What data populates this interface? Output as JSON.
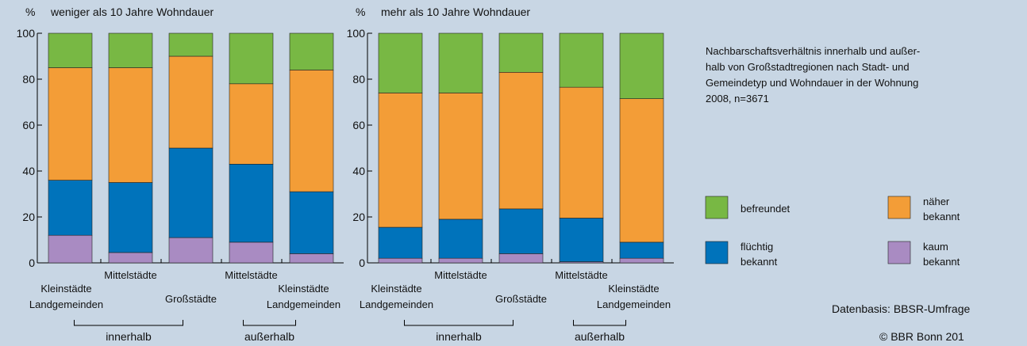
{
  "chart_data": [
    {
      "type": "bar",
      "stacked": true,
      "title": "weniger als 10 Jahre Wohndauer",
      "y_unit": "%",
      "categories": [
        "Kleinstädte\nLandgemeinden",
        "Mittelstädte",
        "Großstädte",
        "Mittelstädte",
        "Kleinstädte\nLandgemeinden"
      ],
      "groups": [
        "innerhalb",
        "außerhalb"
      ],
      "series": [
        {
          "name": "kaum bekannt",
          "color": "#a98bc2",
          "values": [
            12,
            4.5,
            11,
            9,
            4
          ]
        },
        {
          "name": "flüchtig bekannt",
          "color": "#0073bb",
          "values": [
            24,
            30.5,
            39,
            34,
            27
          ]
        },
        {
          "name": "näher bekannt",
          "color": "#f39d37",
          "values": [
            49,
            50,
            40,
            35,
            53
          ]
        },
        {
          "name": "befreundet",
          "color": "#78b844",
          "values": [
            15,
            15,
            10,
            22,
            16
          ]
        }
      ],
      "ylim": [
        0,
        100
      ],
      "yticks": [
        0,
        20,
        40,
        60,
        80,
        100
      ]
    },
    {
      "type": "bar",
      "stacked": true,
      "title": "mehr als 10 Jahre Wohndauer",
      "y_unit": "%",
      "categories": [
        "Kleinstädte\nLandgemeinden",
        "Mittelstädte",
        "Großstädte",
        "Mittelstädte",
        "Kleinstädte\nLandgemeinden"
      ],
      "groups": [
        "innerhalb",
        "außerhalb"
      ],
      "series": [
        {
          "name": "kaum bekannt",
          "color": "#a98bc2",
          "values": [
            2,
            2,
            4,
            0.5,
            2
          ]
        },
        {
          "name": "flüchtig bekannt",
          "color": "#0073bb",
          "values": [
            13.5,
            17,
            19.5,
            19,
            7
          ]
        },
        {
          "name": "näher bekannt",
          "color": "#f39d37",
          "values": [
            58.5,
            55,
            59.5,
            57,
            62.5
          ]
        },
        {
          "name": "befreundet",
          "color": "#78b844",
          "values": [
            26,
            26,
            17,
            23.5,
            28.5
          ]
        }
      ],
      "ylim": [
        0,
        100
      ],
      "yticks": [
        0,
        20,
        40,
        60,
        80,
        100
      ]
    }
  ],
  "description": [
    "Nachbarschaftsverhältnis  innerhalb und außer-",
    "halb von Großstadtregionen nach Stadt- und",
    "Gemeindetyp und Wohndauer in der Wohnung",
    "2008, n=3671"
  ],
  "source": "Datenbasis: BBSR-Umfrage",
  "copyright": "© BBR Bonn 201"
}
